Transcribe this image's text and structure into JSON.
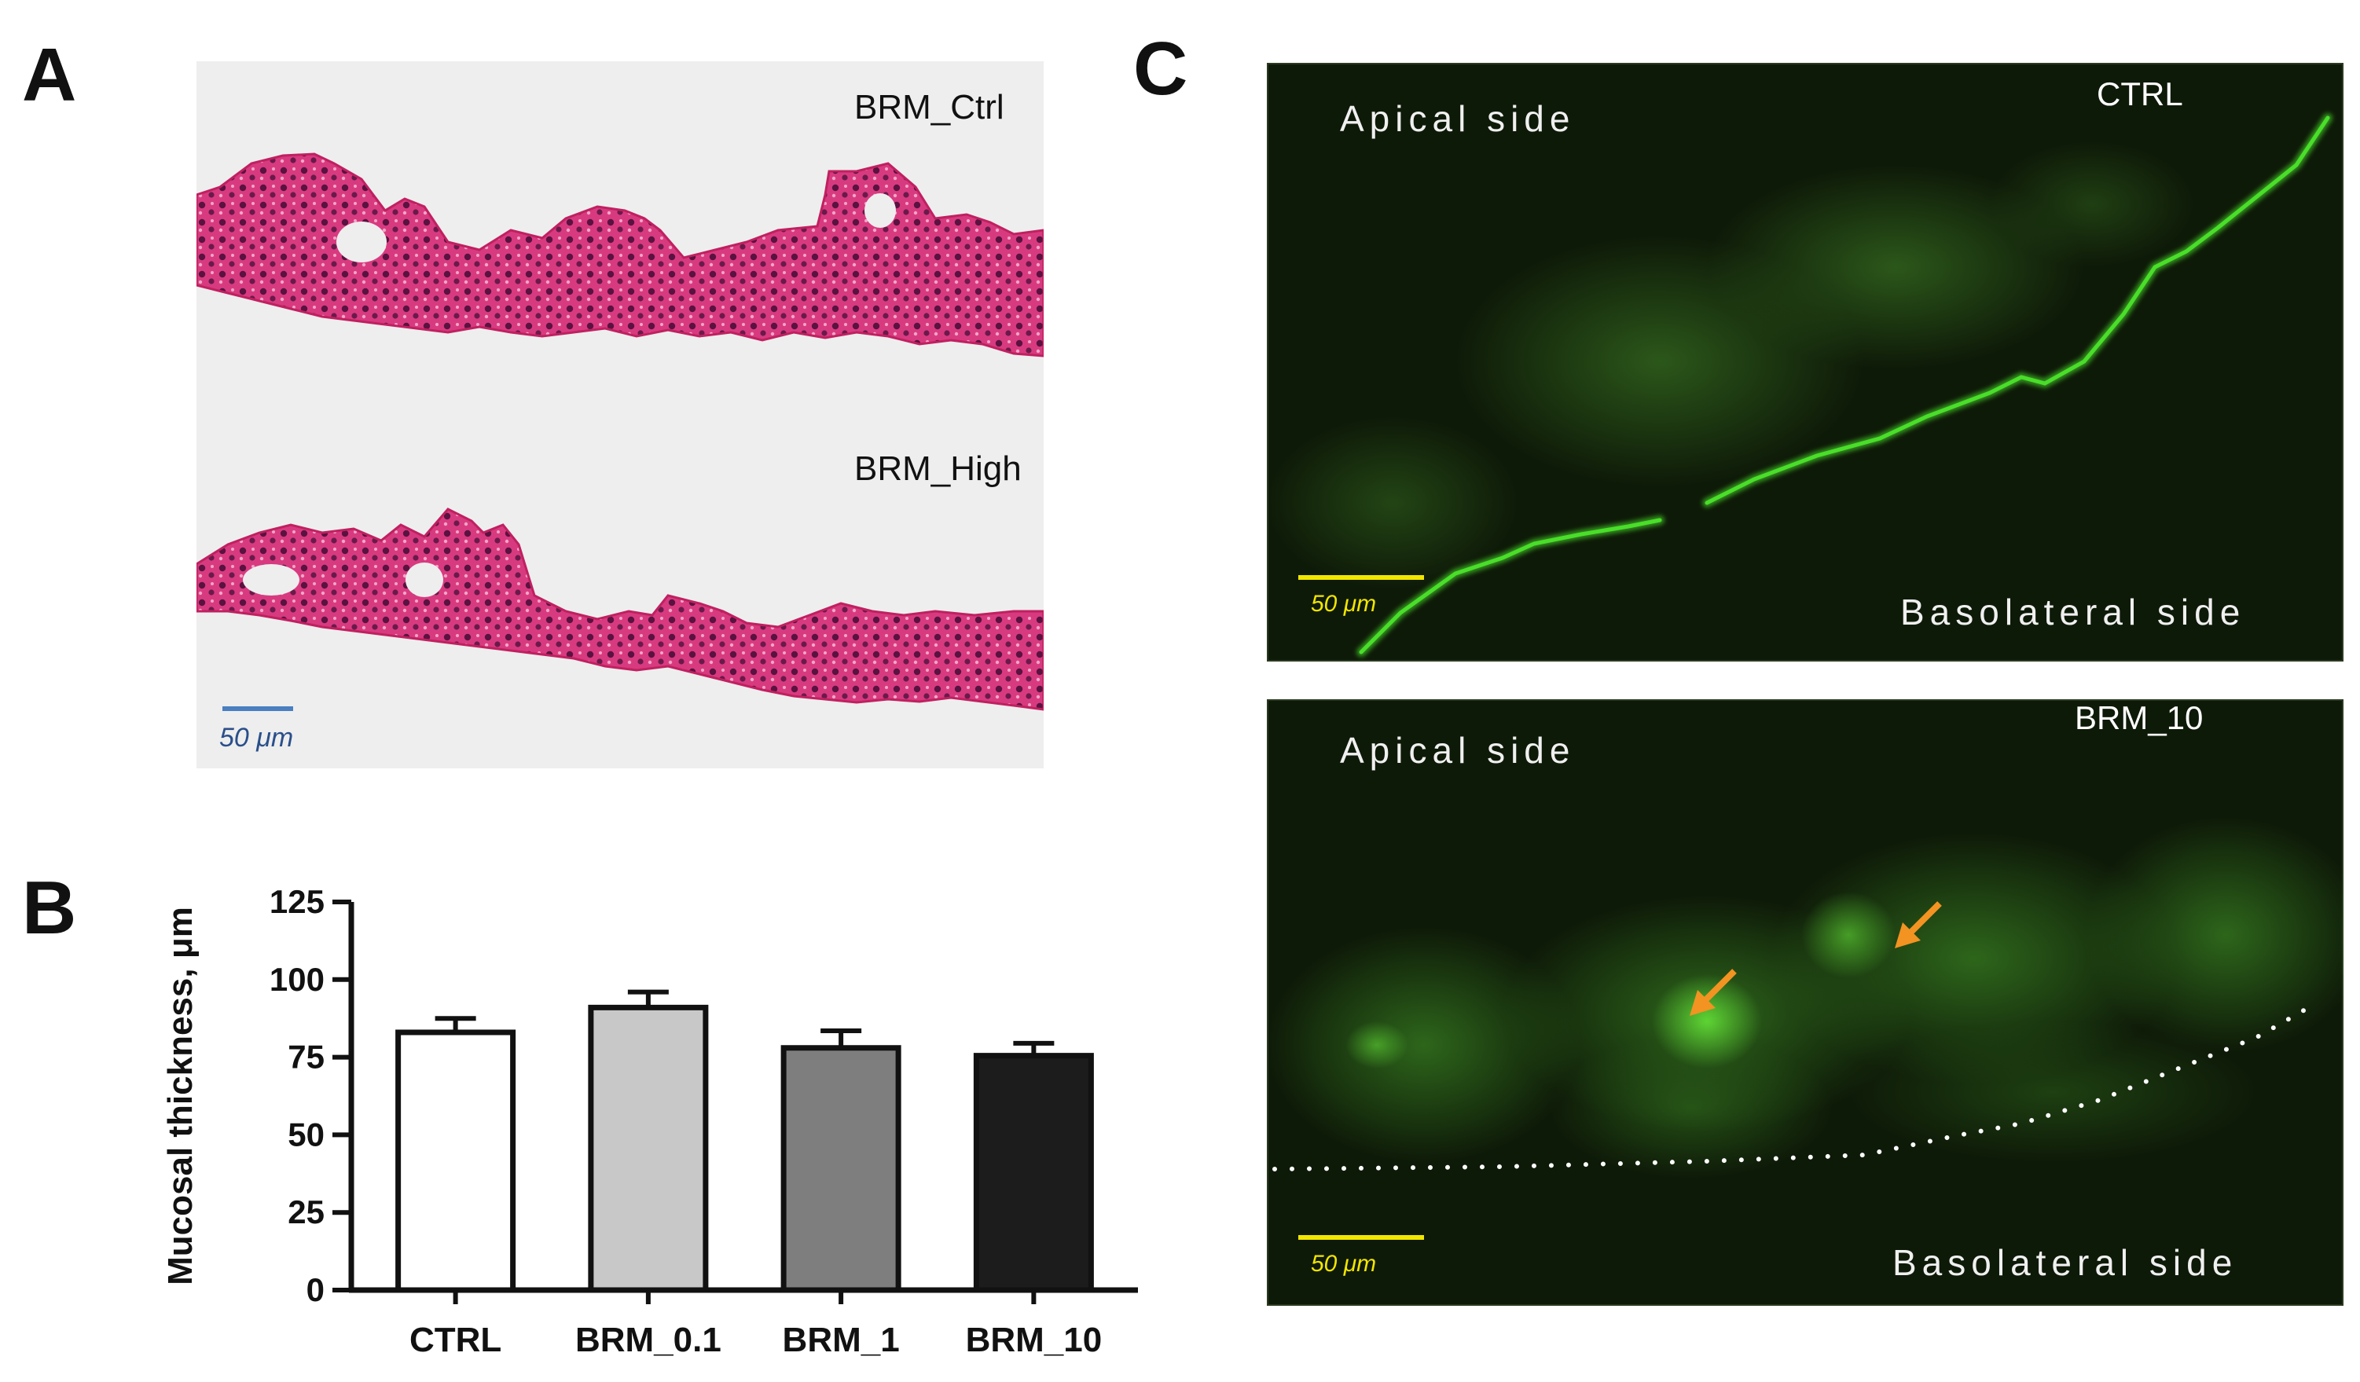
{
  "panels": {
    "a": {
      "letter": "A",
      "top_label": "BRM_Ctrl",
      "bottom_label": "BRM_High",
      "scale_bar": "50 μm"
    },
    "b": {
      "letter": "B"
    },
    "c": {
      "letter": "C",
      "top": {
        "label": "CTRL",
        "apical": "Apical side",
        "basolateral": "Basolateral side",
        "scale_bar": "50 μm"
      },
      "bottom": {
        "label": "BRM_10",
        "apical": "Apical side",
        "basolateral": "Basolateral side",
        "scale_bar": "50 μm"
      }
    }
  },
  "colors": {
    "he_stain": "#d8307a",
    "he_bg": "#eeeeee",
    "fluor_bg": "#0e1a08",
    "fluor_green": "#4ade2a",
    "scale_yellow": "#f2e600",
    "arrow_orange": "#f29322",
    "scale_blue": "#4a7fc0"
  },
  "chart_data": {
    "type": "bar",
    "categories": [
      "CTRL",
      "BRM_0.1",
      "BRM_1",
      "BRM_10"
    ],
    "values": [
      83,
      91,
      78,
      75.5
    ],
    "errors": [
      4.5,
      5,
      5.5,
      4
    ],
    "bar_colors": [
      "#ffffff",
      "#c8c8c8",
      "#7e7e7e",
      "#1c1c1c"
    ],
    "ylabel": "Mucosal thickness, μm",
    "ylim": [
      0,
      125
    ],
    "yticks": [
      0,
      25,
      50,
      75,
      100,
      125
    ],
    "grid": false
  }
}
